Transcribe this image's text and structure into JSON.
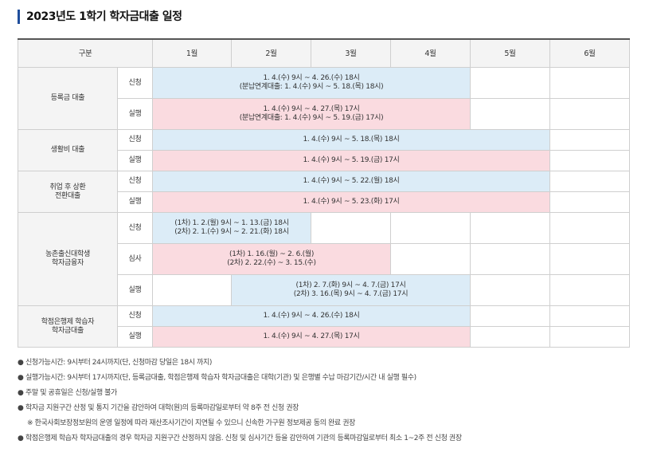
{
  "title": "2023년도 1학기 학자금대출 일정",
  "header": [
    "구분",
    "1월",
    "2월",
    "3월",
    "4월",
    "5월",
    "6월"
  ],
  "groups": {
    "tuition": {
      "label": "등록금 대출",
      "apply": {
        "label": "신청",
        "line1": "1. 4.(수) 9시 ~ 4. 26.(수) 18시",
        "line2": "(분납연계대출: 1. 4.(수) 9시 ~ 5. 18.(목) 18시)"
      },
      "exec": {
        "label": "실행",
        "line1": "1. 4.(수) 9시 ~ 4. 27.(목) 17시",
        "line2": "(분납연계대출: 1. 4.(수) 9시 ~ 5. 19.(금) 17시)"
      }
    },
    "living": {
      "label": "생활비 대출",
      "apply": {
        "label": "신청",
        "text": "1. 4.(수) 9시 ~ 5. 18.(목) 18시"
      },
      "exec": {
        "label": "실행",
        "text": "1. 4.(수) 9시 ~ 5. 19.(금) 17시"
      }
    },
    "icl_conversion": {
      "label_line1": "취업 후 상환",
      "label_line2": "전환대출",
      "apply": {
        "label": "신청",
        "text": "1. 4.(수) 9시 ~ 5. 22.(월) 18시"
      },
      "exec": {
        "label": "실행",
        "text": "1. 4.(수) 9시 ~ 5. 23.(화) 17시"
      }
    },
    "rural": {
      "label_line1": "농촌출신대학생",
      "label_line2": "학자금융자",
      "apply": {
        "label": "신청",
        "line1": "(1차) 1. 2.(월) 9시 ~ 1. 13.(금) 18시",
        "line2": "(2차) 2. 1.(수) 9시 ~ 2. 21.(화) 18시"
      },
      "review": {
        "label": "심사",
        "line1": "(1차) 1. 16.(월) ~ 2. 6.(월)",
        "line2": "(2차) 2. 22.(수) ~ 3. 15.(수)"
      },
      "exec": {
        "label": "실행",
        "line1": "(1차) 2. 7.(화) 9시 ~ 4. 7.(금) 17시",
        "line2": "(2차) 3. 16.(목) 9시 ~ 4. 7.(금) 17시"
      }
    },
    "credit_bank": {
      "label_line1": "학점은행제 학습자",
      "label_line2": "학자금대출",
      "apply": {
        "label": "신청",
        "text": "1. 4.(수) 9시 ~ 4. 26.(수) 18시"
      },
      "exec": {
        "label": "실행",
        "text": "1. 4.(수) 9시 ~ 4. 27.(목) 17시"
      }
    }
  },
  "notes": {
    "bullet": "●",
    "n1": "신청가능시간: 9시부터 24시까지(단, 신청마감 당일은 18시 까지)",
    "n2": "실행가능시간: 9시부터 17시까지(단, 등록금대출, 학점은행제 학습자 학자금대출은 대학(기관) 및 은행별 수납 마감기간/시간 내 실행 필수)",
    "n3": "주말 및 공휴일은 신청/실행 불가",
    "n4": "학자금 지원구간 산정 및 통지 기간을 감안하여 대학(원)의 등록마감일로부터 약 8주 전 신청 권장",
    "n5": "※ 한국사회보장정보원의 운영 일정에 따라 재산조사기간이 지연될 수 있으니 신속한 가구원 정보제공 동의 완료 권장",
    "n6": "학점은행제 학습자 학자금대출의 경우 학자금 지원구간 산정하지 않음. 신청 및 심사기간 등을 감안하여 기관의 등록마감일로부터 최소 1~2주 전 신청 권장"
  },
  "colors": {
    "apply_bg": "#dcecf7",
    "exec_bg": "#fadbe0",
    "title_bar": "#1f4e9c"
  }
}
